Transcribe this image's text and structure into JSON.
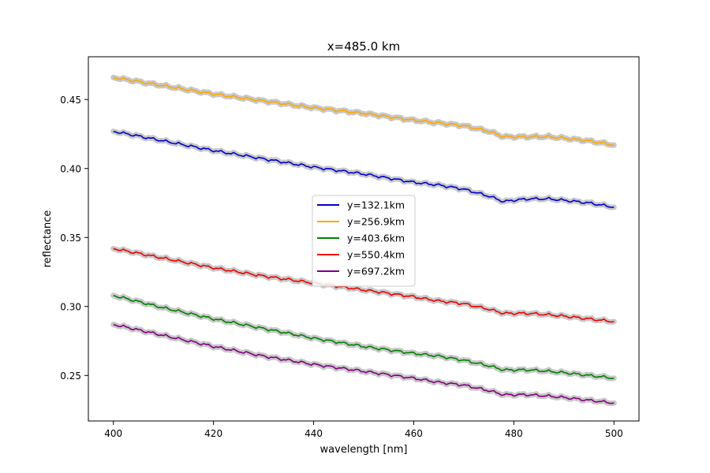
{
  "chart_data": {
    "type": "line",
    "title": "x=485.0 km",
    "xlabel": "wavelength [nm]",
    "ylabel": "reflectance",
    "xlim": [
      395,
      505
    ],
    "ylim": [
      0.217,
      0.481
    ],
    "xticks": [
      400,
      420,
      440,
      460,
      480,
      500
    ],
    "xtick_labels": [
      "400",
      "420",
      "440",
      "460",
      "480",
      "500"
    ],
    "yticks": [
      0.25,
      0.3,
      0.35,
      0.4,
      0.45
    ],
    "ytick_labels": [
      "0.25",
      "0.30",
      "0.35",
      "0.40",
      "0.45"
    ],
    "grid": false,
    "legend_position": "center",
    "uncertainty_band": "gray shaded band around each line",
    "x": [
      400,
      410,
      420,
      430,
      440,
      450,
      460,
      465,
      470,
      475,
      478,
      480,
      483,
      487,
      490,
      495,
      500
    ],
    "series": [
      {
        "name": "y=132.1km",
        "color": "#0000cd",
        "values": [
          0.427,
          0.42,
          0.413,
          0.407,
          0.401,
          0.396,
          0.39,
          0.388,
          0.385,
          0.38,
          0.376,
          0.377,
          0.378,
          0.378,
          0.377,
          0.375,
          0.372
        ]
      },
      {
        "name": "y=256.9km",
        "color": "#ffa500",
        "values": [
          0.466,
          0.46,
          0.454,
          0.449,
          0.444,
          0.44,
          0.435,
          0.433,
          0.431,
          0.427,
          0.423,
          0.423,
          0.423,
          0.423,
          0.422,
          0.42,
          0.417
        ]
      },
      {
        "name": "y=403.6km",
        "color": "#008000",
        "values": [
          0.308,
          0.299,
          0.291,
          0.284,
          0.277,
          0.271,
          0.266,
          0.264,
          0.261,
          0.257,
          0.254,
          0.254,
          0.254,
          0.253,
          0.252,
          0.25,
          0.248
        ]
      },
      {
        "name": "y=550.4km",
        "color": "#ee0000",
        "values": [
          0.342,
          0.335,
          0.328,
          0.322,
          0.317,
          0.312,
          0.307,
          0.304,
          0.302,
          0.298,
          0.295,
          0.295,
          0.295,
          0.294,
          0.293,
          0.291,
          0.289
        ]
      },
      {
        "name": "y=697.2km",
        "color": "#800080",
        "values": [
          0.287,
          0.279,
          0.271,
          0.264,
          0.258,
          0.253,
          0.248,
          0.245,
          0.243,
          0.239,
          0.236,
          0.236,
          0.236,
          0.235,
          0.234,
          0.232,
          0.23
        ]
      }
    ]
  }
}
